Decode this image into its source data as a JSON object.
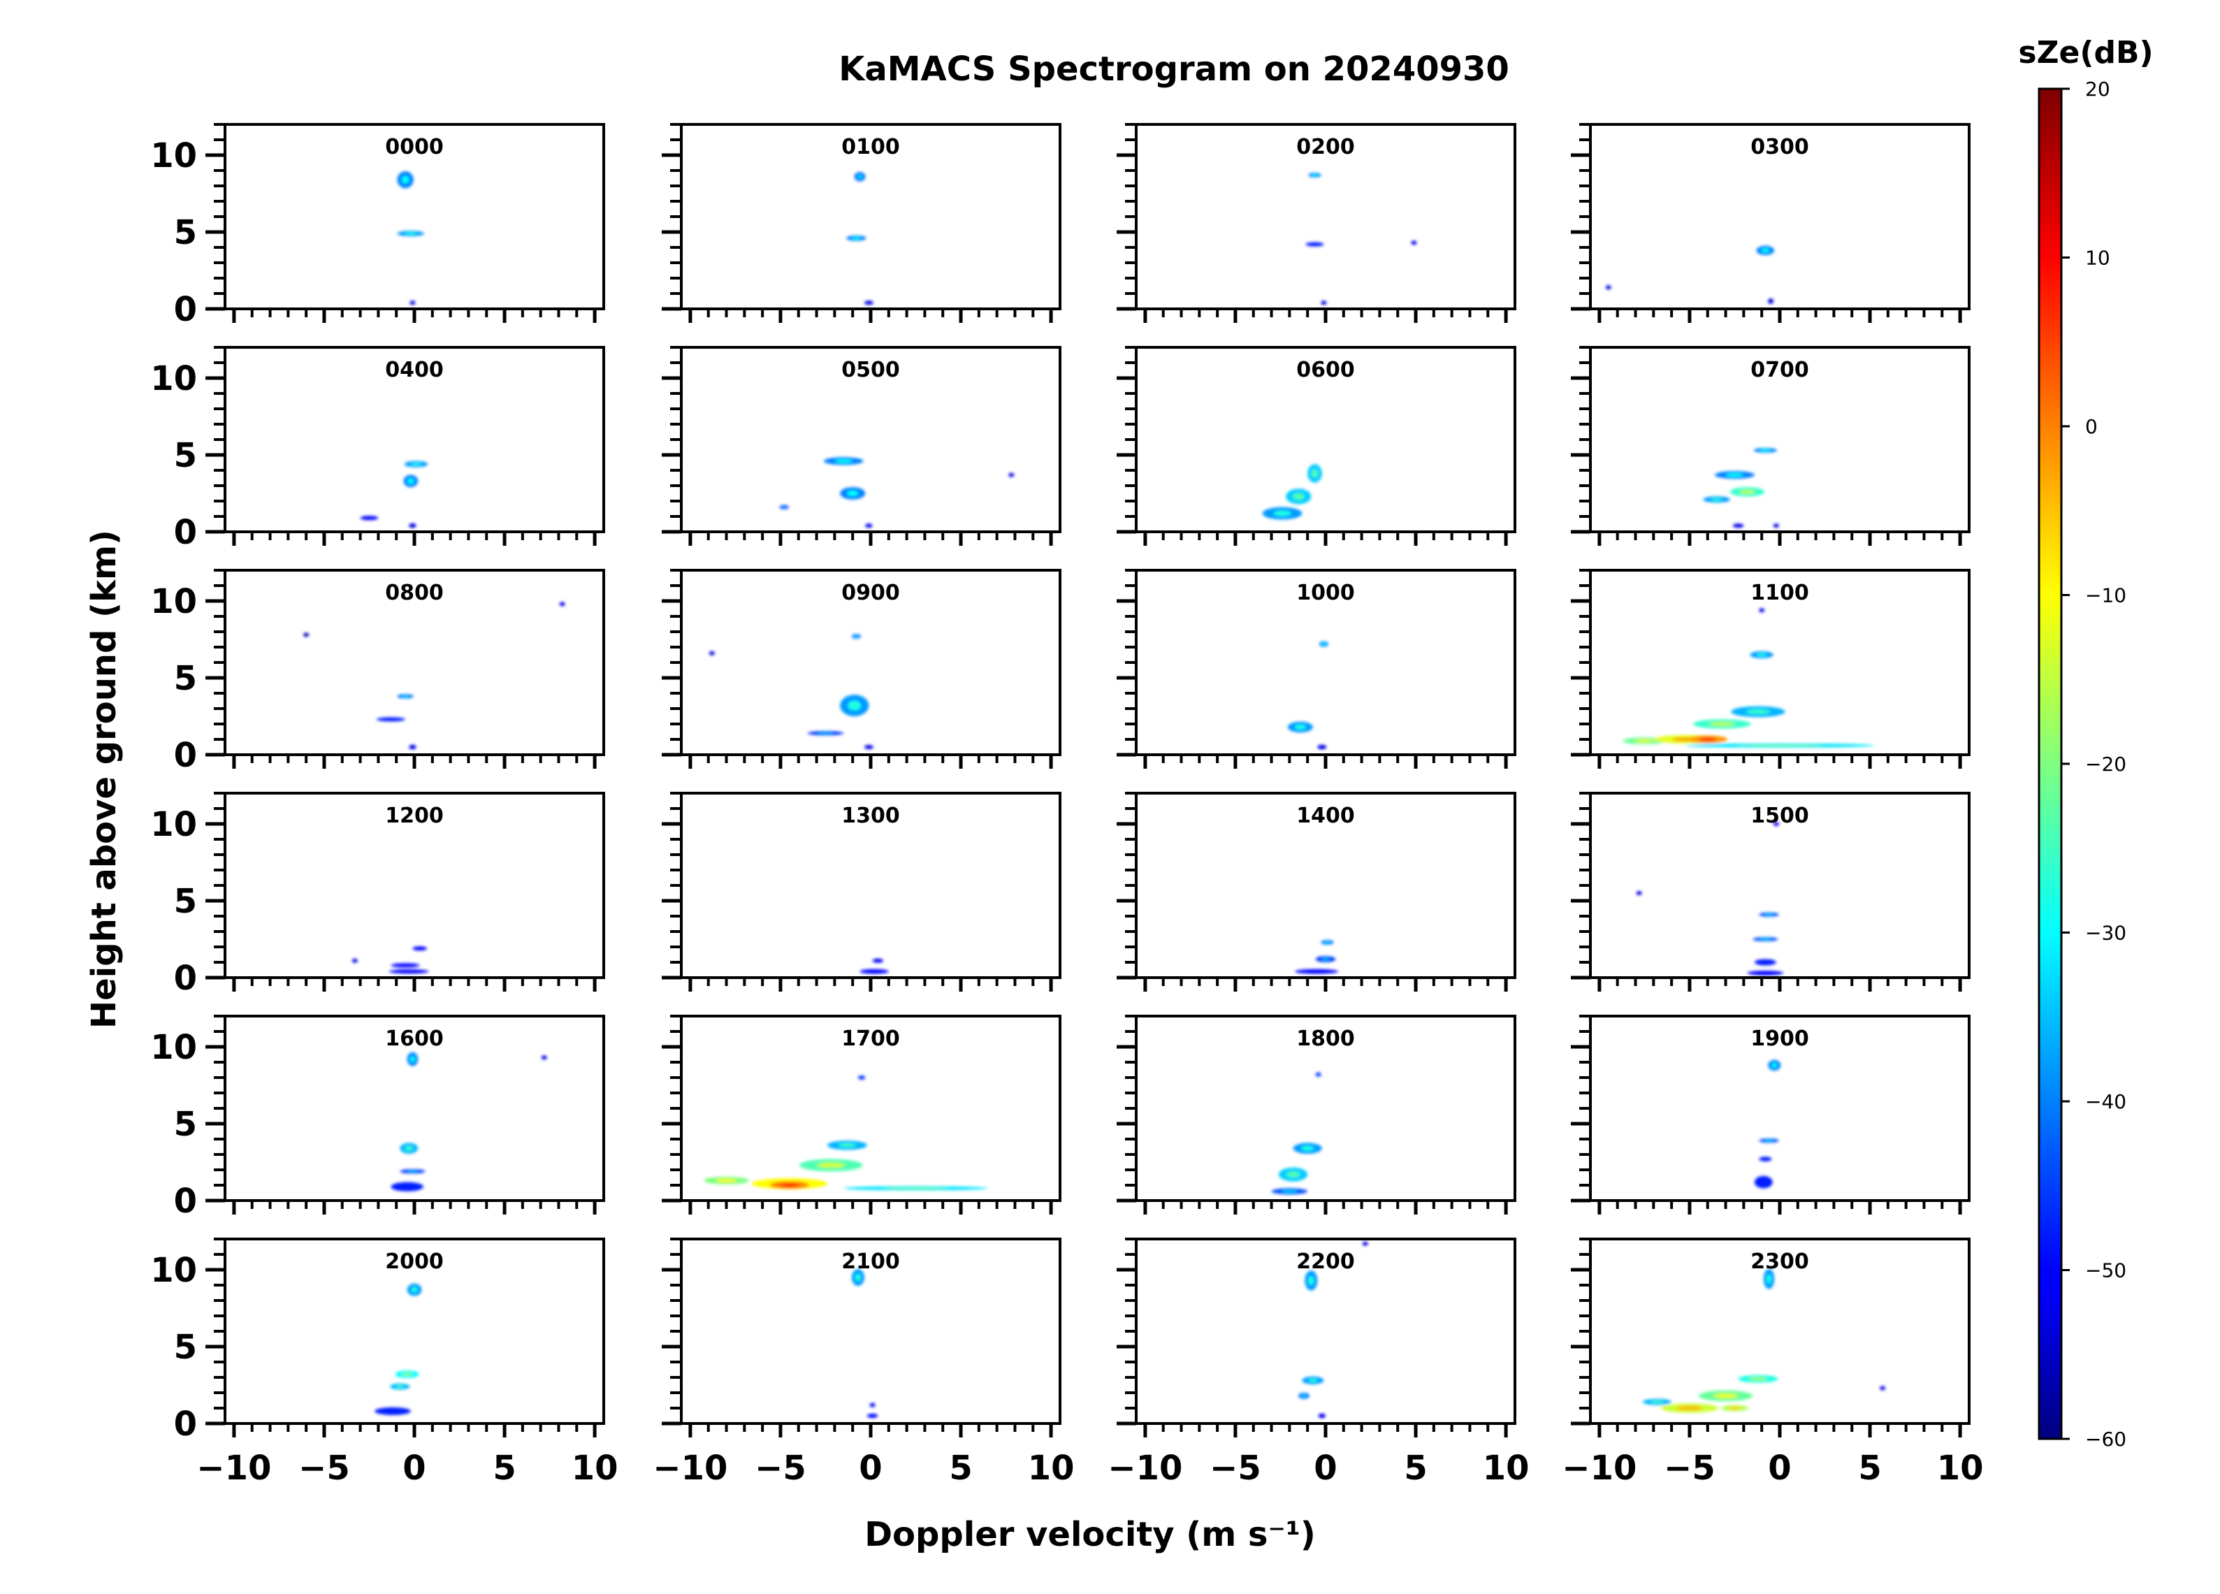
{
  "chart_data": {
    "type": "heatmap",
    "title": "KaMACS Spectrogram on 20240930",
    "xlabel": "Doppler velocity (m s⁻¹)",
    "ylabel": "Height above ground (km)",
    "xlim": [
      -10.5,
      10.5
    ],
    "ylim": [
      0,
      12
    ],
    "xticks": [
      -10,
      -5,
      0,
      5,
      10
    ],
    "xtick_labels": [
      "−10",
      "−5",
      "0",
      "5",
      "10"
    ],
    "yticks": [
      0,
      5,
      10
    ],
    "ytick_labels": [
      "0",
      "5",
      "10"
    ],
    "colorbar": {
      "label": "sZe(dB)",
      "min": -60,
      "max": 20,
      "ticks": [
        20,
        10,
        0,
        -10,
        -20,
        -30,
        -40,
        -50,
        -60
      ],
      "tick_labels": [
        "20",
        "10",
        "0",
        "−10",
        "−20",
        "−30",
        "−40",
        "−50",
        "−60"
      ],
      "colormap": "jet"
    },
    "panels": [
      {
        "label": "0000",
        "blobs": [
          {
            "v": -0.5,
            "h": 8.4,
            "dv": 0.9,
            "dh": 1.1,
            "db": -40
          },
          {
            "v": -0.2,
            "h": 4.9,
            "dv": 1.5,
            "dh": 0.35,
            "db": -38
          },
          {
            "v": -0.1,
            "h": 0.4,
            "dv": 0.3,
            "dh": 0.25,
            "db": -52
          }
        ]
      },
      {
        "label": "0100",
        "blobs": [
          {
            "v": -0.6,
            "h": 8.6,
            "dv": 0.6,
            "dh": 0.6,
            "db": -42
          },
          {
            "v": -0.8,
            "h": 4.6,
            "dv": 1.1,
            "dh": 0.35,
            "db": -40
          },
          {
            "v": -0.1,
            "h": 0.4,
            "dv": 0.5,
            "dh": 0.2,
            "db": -52
          }
        ]
      },
      {
        "label": "0200",
        "blobs": [
          {
            "v": -0.6,
            "h": 8.7,
            "dv": 0.7,
            "dh": 0.3,
            "db": -40
          },
          {
            "v": -0.6,
            "h": 4.2,
            "dv": 1.0,
            "dh": 0.15,
            "db": -48
          },
          {
            "v": 4.9,
            "h": 4.3,
            "dv": 0.2,
            "dh": 0.1,
            "db": -52
          },
          {
            "v": -0.1,
            "h": 0.4,
            "dv": 0.3,
            "dh": 0.25,
            "db": -52
          }
        ]
      },
      {
        "label": "0300",
        "blobs": [
          {
            "v": -0.8,
            "h": 3.8,
            "dv": 1.0,
            "dh": 0.6,
            "db": -40
          },
          {
            "v": -9.5,
            "h": 1.4,
            "dv": 0.2,
            "dh": 0.1,
            "db": -52
          },
          {
            "v": -0.5,
            "h": 0.5,
            "dv": 0.3,
            "dh": 0.35,
            "db": -52
          }
        ]
      },
      {
        "label": "0400",
        "blobs": [
          {
            "v": 0.1,
            "h": 4.4,
            "dv": 1.3,
            "dh": 0.4,
            "db": -38
          },
          {
            "v": -0.2,
            "h": 3.3,
            "dv": 0.8,
            "dh": 0.8,
            "db": -40
          },
          {
            "v": -2.5,
            "h": 0.9,
            "dv": 1.0,
            "dh": 0.1,
            "db": -50
          },
          {
            "v": -0.1,
            "h": 0.4,
            "dv": 0.4,
            "dh": 0.3,
            "db": -52
          }
        ]
      },
      {
        "label": "0500",
        "blobs": [
          {
            "v": -1.5,
            "h": 4.6,
            "dv": 2.2,
            "dh": 0.5,
            "db": -40
          },
          {
            "v": -1.0,
            "h": 2.5,
            "dv": 1.4,
            "dh": 0.8,
            "db": -40
          },
          {
            "v": -4.8,
            "h": 1.6,
            "dv": 0.5,
            "dh": 0.2,
            "db": -46
          },
          {
            "v": 7.8,
            "h": 3.7,
            "dv": 0.2,
            "dh": 0.1,
            "db": -52
          },
          {
            "v": -0.1,
            "h": 0.4,
            "dv": 0.4,
            "dh": 0.2,
            "db": -52
          }
        ]
      },
      {
        "label": "0600",
        "blobs": [
          {
            "v": -0.6,
            "h": 3.8,
            "dv": 0.8,
            "dh": 1.2,
            "db": -34
          },
          {
            "v": -1.5,
            "h": 2.3,
            "dv": 1.4,
            "dh": 1.0,
            "db": -34
          },
          {
            "v": -2.4,
            "h": 1.2,
            "dv": 2.2,
            "dh": 0.8,
            "db": -38
          }
        ]
      },
      {
        "label": "0700",
        "blobs": [
          {
            "v": -0.8,
            "h": 5.3,
            "dv": 1.3,
            "dh": 0.3,
            "db": -40
          },
          {
            "v": -2.5,
            "h": 3.7,
            "dv": 2.2,
            "dh": 0.5,
            "db": -40
          },
          {
            "v": -1.8,
            "h": 2.6,
            "dv": 1.9,
            "dh": 0.6,
            "db": -26
          },
          {
            "v": -3.5,
            "h": 2.1,
            "dv": 1.5,
            "dh": 0.4,
            "db": -38
          },
          {
            "v": -2.3,
            "h": 0.4,
            "dv": 0.6,
            "dh": 0.2,
            "db": -52
          },
          {
            "v": -0.2,
            "h": 0.4,
            "dv": 0.3,
            "dh": 0.2,
            "db": -52
          }
        ]
      },
      {
        "label": "0800",
        "blobs": [
          {
            "v": -0.5,
            "h": 3.8,
            "dv": 0.9,
            "dh": 0.25,
            "db": -42
          },
          {
            "v": -1.3,
            "h": 2.3,
            "dv": 1.6,
            "dh": 0.15,
            "db": -48
          },
          {
            "v": -0.1,
            "h": 0.5,
            "dv": 0.4,
            "dh": 0.3,
            "db": -52
          },
          {
            "v": 8.2,
            "h": 9.8,
            "dv": 0.3,
            "dh": 0.1,
            "db": -52
          },
          {
            "v": -6.0,
            "h": 7.8,
            "dv": 0.1,
            "dh": 0.1,
            "db": -56
          }
        ]
      },
      {
        "label": "0900",
        "blobs": [
          {
            "v": -0.8,
            "h": 7.7,
            "dv": 0.5,
            "dh": 0.3,
            "db": -42
          },
          {
            "v": -0.9,
            "h": 3.2,
            "dv": 1.6,
            "dh": 1.4,
            "db": -38
          },
          {
            "v": -2.5,
            "h": 1.4,
            "dv": 2.0,
            "dh": 0.2,
            "db": -46
          },
          {
            "v": -8.8,
            "h": 6.6,
            "dv": 0.2,
            "dh": 0.1,
            "db": -52
          },
          {
            "v": -0.1,
            "h": 0.5,
            "dv": 0.5,
            "dh": 0.2,
            "db": -52
          }
        ]
      },
      {
        "label": "1000",
        "blobs": [
          {
            "v": -0.1,
            "h": 7.2,
            "dv": 0.5,
            "dh": 0.35,
            "db": -40
          },
          {
            "v": -1.4,
            "h": 1.8,
            "dv": 1.4,
            "dh": 0.7,
            "db": -38
          },
          {
            "v": -0.2,
            "h": 0.5,
            "dv": 0.5,
            "dh": 0.3,
            "db": -52
          }
        ]
      },
      {
        "label": "1100",
        "blobs": [
          {
            "v": -1.0,
            "h": 6.5,
            "dv": 1.3,
            "dh": 0.45,
            "db": -38
          },
          {
            "v": -1.2,
            "h": 2.8,
            "dv": 3.0,
            "dh": 0.7,
            "db": -36
          },
          {
            "v": -3.2,
            "h": 2.0,
            "dv": 3.2,
            "dh": 0.6,
            "db": -26
          },
          {
            "v": -5.2,
            "h": 1.0,
            "dv": 3.5,
            "dh": 0.55,
            "db": -12
          },
          {
            "v": -4.0,
            "h": 1.0,
            "dv": 2.2,
            "dh": 0.5,
            "db": -2
          },
          {
            "v": -7.5,
            "h": 0.9,
            "dv": 2.4,
            "dh": 0.45,
            "db": -22
          },
          {
            "v": 0.0,
            "h": 0.6,
            "dv": 10.5,
            "dh": 0.2,
            "db": -32
          },
          {
            "v": -1.0,
            "h": 9.4,
            "dv": 0.2,
            "dh": 0.1,
            "db": -52
          }
        ]
      },
      {
        "label": "1200",
        "blobs": [
          {
            "v": 0.3,
            "h": 1.9,
            "dv": 0.8,
            "dh": 0.1,
            "db": -50
          },
          {
            "v": -0.5,
            "h": 0.8,
            "dv": 1.6,
            "dh": 0.15,
            "db": -50
          },
          {
            "v": -0.3,
            "h": 0.4,
            "dv": 2.2,
            "dh": 0.2,
            "db": -50
          },
          {
            "v": -3.3,
            "h": 1.1,
            "dv": 0.2,
            "dh": 0.1,
            "db": -52
          }
        ]
      },
      {
        "label": "1300",
        "blobs": [
          {
            "v": 0.4,
            "h": 1.1,
            "dv": 0.6,
            "dh": 0.2,
            "db": -50
          },
          {
            "v": 0.2,
            "h": 0.4,
            "dv": 1.6,
            "dh": 0.3,
            "db": -50
          }
        ]
      },
      {
        "label": "1400",
        "blobs": [
          {
            "v": 0.1,
            "h": 2.3,
            "dv": 0.7,
            "dh": 0.3,
            "db": -42
          },
          {
            "v": 0.0,
            "h": 1.2,
            "dv": 1.1,
            "dh": 0.4,
            "db": -46
          },
          {
            "v": -0.5,
            "h": 0.4,
            "dv": 2.4,
            "dh": 0.3,
            "db": -50
          }
        ]
      },
      {
        "label": "1500",
        "blobs": [
          {
            "v": -0.2,
            "h": 10.0,
            "dv": 0.3,
            "dh": 0.2,
            "db": -50
          },
          {
            "v": -0.6,
            "h": 4.1,
            "dv": 1.1,
            "dh": 0.2,
            "db": -44
          },
          {
            "v": -0.8,
            "h": 2.5,
            "dv": 1.4,
            "dh": 0.2,
            "db": -44
          },
          {
            "v": -0.8,
            "h": 1.0,
            "dv": 1.2,
            "dh": 0.4,
            "db": -48
          },
          {
            "v": -0.8,
            "h": 0.3,
            "dv": 2.0,
            "dh": 0.3,
            "db": -50
          },
          {
            "v": -7.8,
            "h": 5.5,
            "dv": 0.25,
            "dh": 0.1,
            "db": -52
          }
        ]
      },
      {
        "label": "1600",
        "blobs": [
          {
            "v": -0.1,
            "h": 9.2,
            "dv": 0.6,
            "dh": 0.9,
            "db": -40
          },
          {
            "v": -0.3,
            "h": 3.4,
            "dv": 1.0,
            "dh": 0.7,
            "db": -36
          },
          {
            "v": -0.1,
            "h": 1.9,
            "dv": 1.4,
            "dh": 0.2,
            "db": -46
          },
          {
            "v": -0.4,
            "h": 0.9,
            "dv": 1.8,
            "dh": 0.6,
            "db": -48
          },
          {
            "v": 7.2,
            "h": 9.3,
            "dv": 0.2,
            "dh": 0.1,
            "db": -52
          }
        ]
      },
      {
        "label": "1700",
        "blobs": [
          {
            "v": -0.5,
            "h": 8.0,
            "dv": 0.4,
            "dh": 0.15,
            "db": -46
          },
          {
            "v": -1.3,
            "h": 3.6,
            "dv": 2.2,
            "dh": 0.6,
            "db": -36
          },
          {
            "v": -2.2,
            "h": 2.3,
            "dv": 3.5,
            "dh": 0.8,
            "db": -24
          },
          {
            "v": -4.5,
            "h": 1.1,
            "dv": 4.2,
            "dh": 0.7,
            "db": -10
          },
          {
            "v": -4.5,
            "h": 1.0,
            "dv": 2.2,
            "dh": 0.45,
            "db": 0
          },
          {
            "v": -8.0,
            "h": 1.3,
            "dv": 2.5,
            "dh": 0.5,
            "db": -20
          },
          {
            "v": 2.5,
            "h": 0.8,
            "dv": 8.0,
            "dh": 0.15,
            "db": -32
          }
        ]
      },
      {
        "label": "1800",
        "blobs": [
          {
            "v": -0.4,
            "h": 8.2,
            "dv": 0.3,
            "dh": 0.15,
            "db": -46
          },
          {
            "v": -1.0,
            "h": 3.4,
            "dv": 1.6,
            "dh": 0.7,
            "db": -38
          },
          {
            "v": -1.8,
            "h": 1.7,
            "dv": 1.6,
            "dh": 0.9,
            "db": -34
          },
          {
            "v": -2.0,
            "h": 0.6,
            "dv": 2.0,
            "dh": 0.4,
            "db": -44
          }
        ]
      },
      {
        "label": "1900",
        "blobs": [
          {
            "v": -0.3,
            "h": 8.8,
            "dv": 0.7,
            "dh": 0.7,
            "db": -40
          },
          {
            "v": -0.6,
            "h": 3.9,
            "dv": 1.1,
            "dh": 0.25,
            "db": -44
          },
          {
            "v": -0.8,
            "h": 2.7,
            "dv": 0.7,
            "dh": 0.3,
            "db": -48
          },
          {
            "v": -0.9,
            "h": 1.2,
            "dv": 1.0,
            "dh": 0.8,
            "db": -48
          }
        ]
      },
      {
        "label": "2000",
        "blobs": [
          {
            "v": 0.0,
            "h": 8.7,
            "dv": 0.8,
            "dh": 0.8,
            "db": -38
          },
          {
            "v": -0.4,
            "h": 3.2,
            "dv": 1.3,
            "dh": 0.5,
            "db": -30
          },
          {
            "v": -0.8,
            "h": 2.4,
            "dv": 1.1,
            "dh": 0.4,
            "db": -36
          },
          {
            "v": -1.2,
            "h": 0.8,
            "dv": 2.0,
            "dh": 0.5,
            "db": -48
          }
        ]
      },
      {
        "label": "2100",
        "blobs": [
          {
            "v": -0.7,
            "h": 9.5,
            "dv": 0.7,
            "dh": 1.1,
            "db": -38
          },
          {
            "v": 0.1,
            "h": 1.2,
            "dv": 0.3,
            "dh": 0.1,
            "db": -50
          },
          {
            "v": 0.1,
            "h": 0.5,
            "dv": 0.6,
            "dh": 0.2,
            "db": -50
          }
        ]
      },
      {
        "label": "2200",
        "blobs": [
          {
            "v": -0.8,
            "h": 9.3,
            "dv": 0.7,
            "dh": 1.3,
            "db": -38
          },
          {
            "v": -0.7,
            "h": 2.8,
            "dv": 1.2,
            "dh": 0.5,
            "db": -38
          },
          {
            "v": -1.2,
            "h": 1.8,
            "dv": 0.6,
            "dh": 0.4,
            "db": -42
          },
          {
            "v": -0.2,
            "h": 0.5,
            "dv": 0.4,
            "dh": 0.3,
            "db": -52
          },
          {
            "v": 2.2,
            "h": 11.7,
            "dv": 0.3,
            "dh": 0.1,
            "db": -52
          }
        ]
      },
      {
        "label": "2300",
        "blobs": [
          {
            "v": -0.6,
            "h": 9.4,
            "dv": 0.6,
            "dh": 1.3,
            "db": -38
          },
          {
            "v": -1.2,
            "h": 2.9,
            "dv": 2.2,
            "dh": 0.5,
            "db": -28
          },
          {
            "v": -3.0,
            "h": 1.8,
            "dv": 3.0,
            "dh": 0.7,
            "db": -22
          },
          {
            "v": -5.0,
            "h": 1.0,
            "dv": 3.2,
            "dh": 0.6,
            "db": -14
          },
          {
            "v": -2.5,
            "h": 1.0,
            "dv": 1.5,
            "dh": 0.4,
            "db": -16
          },
          {
            "v": -6.8,
            "h": 1.4,
            "dv": 1.6,
            "dh": 0.4,
            "db": -36
          },
          {
            "v": 5.7,
            "h": 2.3,
            "dv": 0.2,
            "dh": 0.1,
            "db": -52
          }
        ]
      }
    ]
  }
}
